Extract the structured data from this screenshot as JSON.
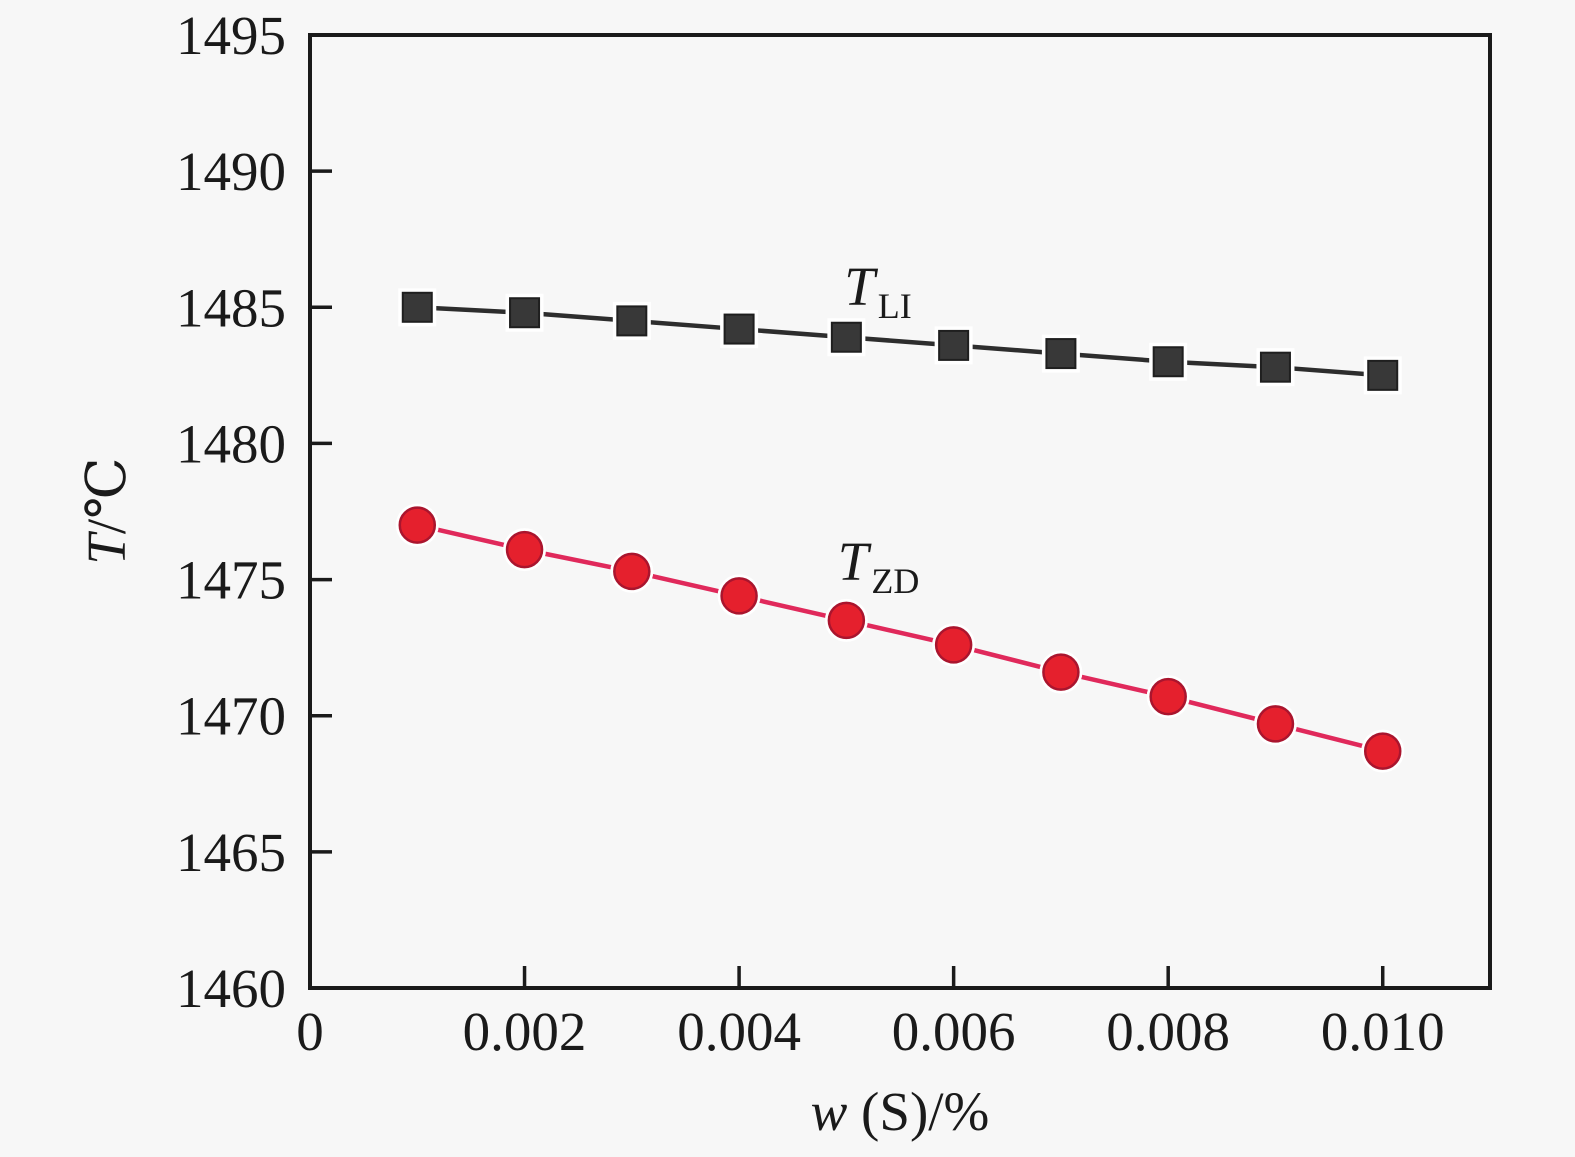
{
  "page": {
    "bg_color": "#f7f7f7",
    "axis_color": "#1a1a1a"
  },
  "chart_data": {
    "type": "line",
    "title": "",
    "xlabel": {
      "italic": "w",
      "rest": " (S)/%"
    },
    "ylabel": {
      "italic": "T",
      "rest": "/℃"
    },
    "axes": {
      "xlim": [
        0,
        0.011
      ],
      "ylim": [
        1460,
        1495
      ],
      "x_tick_values": [
        0,
        0.002,
        0.004,
        0.006,
        0.008,
        0.01
      ],
      "x_tick_labels": [
        "0",
        "0.002",
        "0.004",
        "0.006",
        "0.008",
        "0.010"
      ],
      "y_tick_values": [
        1460,
        1465,
        1470,
        1475,
        1480,
        1485,
        1490,
        1495
      ],
      "y_tick_labels": [
        "1460",
        "1465",
        "1470",
        "1475",
        "1480",
        "1485",
        "1490",
        "1495"
      ],
      "grid": false,
      "box": true,
      "ticks_inward": true
    },
    "x": [
      0.001,
      0.002,
      0.003,
      0.004,
      0.005,
      0.006,
      0.007,
      0.008,
      0.009,
      0.01
    ],
    "series": [
      {
        "id": "TLI",
        "label": {
          "main": "T",
          "sub": "LI"
        },
        "marker": "square",
        "line_color": "#2d2d2d",
        "marker_fill": "#383838",
        "marker_edge": "#1f1f1f",
        "values": [
          1485.0,
          1484.8,
          1484.5,
          1484.2,
          1483.9,
          1483.6,
          1483.3,
          1483.0,
          1482.8,
          1482.5
        ],
        "label_anchor": {
          "x": 0.00498,
          "y": 1485.0
        }
      },
      {
        "id": "TZD",
        "label": {
          "main": "T",
          "sub": "ZD"
        },
        "marker": "circle",
        "line_color": "#e0295b",
        "marker_fill": "#e5202d",
        "marker_edge": "#aa152e",
        "values": [
          1477.0,
          1476.1,
          1475.3,
          1474.4,
          1473.5,
          1472.6,
          1471.6,
          1470.7,
          1469.7,
          1468.7
        ],
        "label_anchor": {
          "x": 0.00492,
          "y": 1474.9
        }
      }
    ],
    "legend_position": "inline-labels"
  }
}
